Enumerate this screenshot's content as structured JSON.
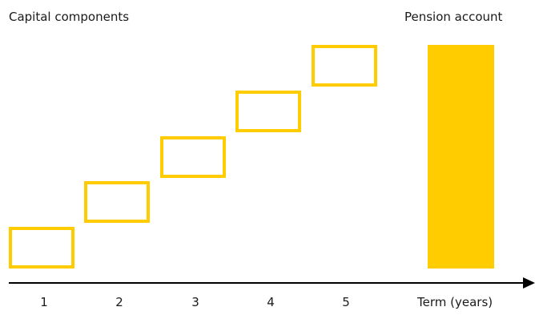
{
  "titles": {
    "left": "Capital components",
    "right": "Pension account"
  },
  "axis": {
    "ticks": [
      "1",
      "2",
      "3",
      "4",
      "5"
    ],
    "label": "Term (years)"
  },
  "colors": {
    "accent": "#FFCC00",
    "axis": "#000000"
  }
}
